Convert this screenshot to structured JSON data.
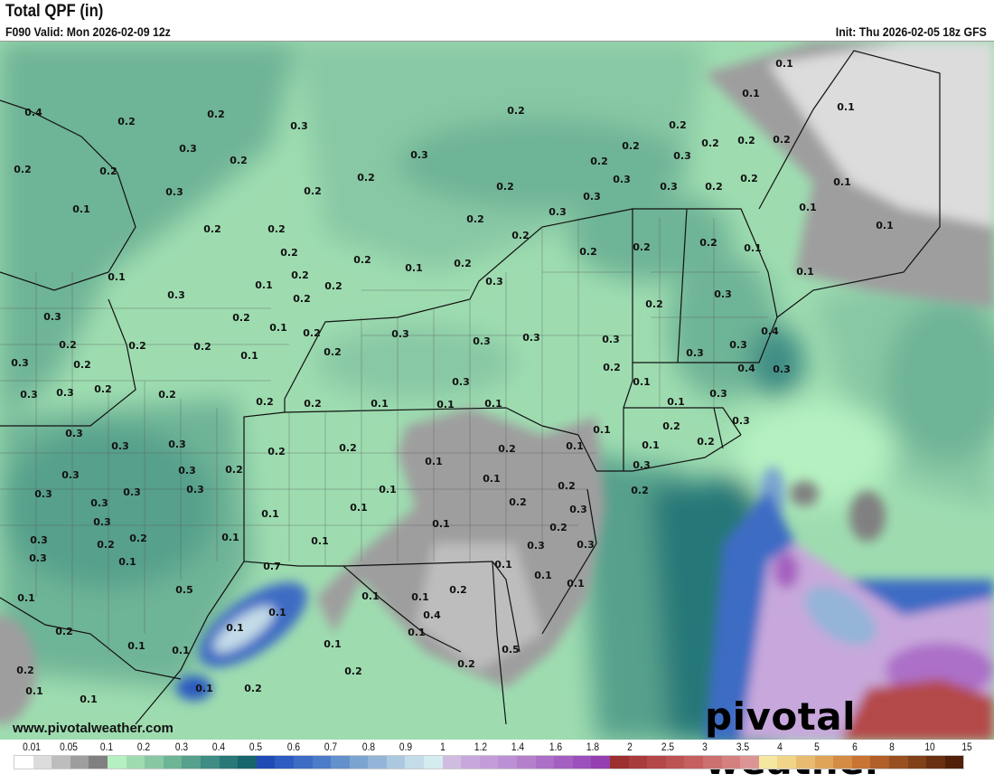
{
  "header": {
    "title": "Total QPF (in)",
    "valid": "F090 Valid: Mon 2026-02-09 12z",
    "init": "Init: Thu 2026-02-05 18z GFS"
  },
  "map": {
    "contour_labels": [
      "0.4",
      "0.2",
      "0.2",
      "0.3",
      "0.2",
      "0.3",
      "0.2",
      "0.3",
      "0.2",
      "0.2",
      "0.2",
      "0.2",
      "0.3",
      "0.1",
      "0.2",
      "0.2",
      "0.2",
      "0.2",
      "0.3",
      "0.3",
      "0.3",
      "0.3",
      "0.2",
      "0.2",
      "0.2",
      "0.2",
      "0.2",
      "0.2",
      "0.2",
      "0.2",
      "0.3",
      "0.1",
      "0.1",
      "0.1",
      "0.1",
      "0.1",
      "0.1",
      "0.1",
      "0.2",
      "0.2",
      "0.1",
      "0.2",
      "0.3",
      "0.2",
      "0.2",
      "0.2",
      "0.2",
      "0.1",
      "0.1",
      "0.3",
      "0.1",
      "0.2",
      "0.2",
      "0.2",
      "0.3",
      "0.2",
      "0.2",
      "0.2",
      "0.2",
      "0.1",
      "0.1",
      "0.2",
      "0.2",
      "0.3",
      "0.3",
      "0.3",
      "0.3",
      "0.2",
      "0.3",
      "0.3",
      "0.3",
      "0.4",
      "0.4",
      "0.3",
      "0.3",
      "0.2",
      "0.3",
      "0.3",
      "0.2",
      "0.2",
      "0.2",
      "0.2",
      "0.1",
      "0.1",
      "0.1",
      "0.3",
      "0.2",
      "0.1",
      "0.3",
      "0.1",
      "0.3",
      "0.3",
      "0.3",
      "0.2",
      "0.2",
      "0.1",
      "0.2",
      "0.1",
      "0.1",
      "0.1",
      "0.2",
      "0.2",
      "0.3",
      "0.3",
      "0.3",
      "0.3",
      "0.3",
      "0.3",
      "0.3",
      "0.2",
      "0.1",
      "0.1",
      "0.2",
      "0.3",
      "0.2",
      "0.3",
      "0.3",
      "0.2",
      "0.2",
      "0.1",
      "0.1",
      "0.1",
      "0.2",
      "0.3",
      "0.2",
      "0.3",
      "0.1",
      "0.1",
      "0.1",
      "0.3",
      "0.3",
      "0.1",
      "0.7",
      "0.5",
      "0.1",
      "0.1",
      "0.1",
      "0.1",
      "0.1",
      "0.2",
      "0.1",
      "0.1",
      "0.2",
      "0.4",
      "0.1",
      "0.1",
      "0.1",
      "0.1",
      "0.5",
      "0.2",
      "0.1",
      "0.1",
      "0.2",
      "0.2",
      "0.2",
      "0.1"
    ],
    "website": "www.pivotalweather.com",
    "logo_text": "pivotal weather"
  },
  "legend": {
    "labels": [
      "0.01",
      "0.05",
      "0.1",
      "0.2",
      "0.3",
      "0.4",
      "0.5",
      "0.6",
      "0.7",
      "0.8",
      "0.9",
      "1",
      "1.2",
      "1.4",
      "1.6",
      "1.8",
      "2",
      "2.5",
      "3",
      "3.5",
      "4",
      "5",
      "6",
      "8",
      "10",
      "15"
    ],
    "colors": [
      "#ffffff",
      "#dcdcdc",
      "#bdbdbd",
      "#9e9e9e",
      "#808080",
      "#b4f0c0",
      "#9edcb0",
      "#88c8a4",
      "#6eb496",
      "#56a08c",
      "#3e8c84",
      "#287878",
      "#16646c",
      "#1e4cb4",
      "#2c5cc0",
      "#3c6cc4",
      "#4c7cc8",
      "#6490cc",
      "#7ca4d0",
      "#94b4d8",
      "#acc8e0",
      "#c4dce8",
      "#d4ecf0",
      "#d0bce0",
      "#c8a8dc",
      "#c49cd8",
      "#bc90d4",
      "#b480cc",
      "#ac70c8",
      "#a460c0",
      "#9c50bc",
      "#9440b0",
      "#9c3030",
      "#a83c3c",
      "#b44848",
      "#bc5454",
      "#c46060",
      "#cc7070",
      "#d48080",
      "#dc9494",
      "#f4e8a0",
      "#f0d488",
      "#e8bc70",
      "#e0a458",
      "#d48c44",
      "#c87434",
      "#b06028",
      "#985020",
      "#804018",
      "#683010",
      "#502008"
    ]
  }
}
